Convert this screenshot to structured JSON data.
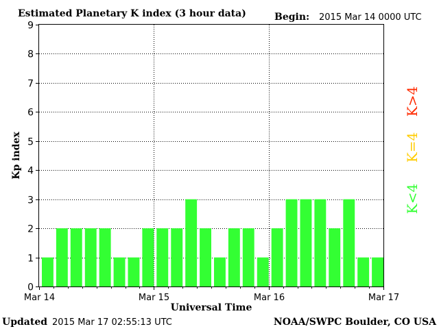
{
  "header": {
    "title": "Estimated Planetary K index (3 hour data)",
    "begin_label": "Begin:",
    "begin_value": "2015 Mar 14 0000 UTC"
  },
  "footer": {
    "updated_label": "Updated",
    "updated_value": "2015 Mar 17 02:55:13 UTC",
    "credit": "NOAA/SWPC Boulder, CO USA"
  },
  "legend": [
    {
      "text": "K>4",
      "color": "#ff2a00"
    },
    {
      "text": "K=4",
      "color": "#ffcc00"
    },
    {
      "text": "K<4",
      "color": "#33ff33"
    }
  ],
  "chart_data": {
    "type": "bar",
    "title": "Estimated Planetary K index (3 hour data)",
    "xlabel": "Universal Time",
    "ylabel": "Kp index",
    "ylim": [
      0,
      9
    ],
    "yticks": [
      "0",
      "1",
      "2",
      "3",
      "4",
      "5",
      "6",
      "7",
      "8",
      "9"
    ],
    "xticks": [
      "Mar 14",
      "Mar 15",
      "Mar 16",
      "Mar 17"
    ],
    "values": [
      1,
      2,
      2,
      2,
      2,
      1,
      1,
      2,
      2,
      2,
      3,
      2,
      1,
      2,
      2,
      1,
      2,
      3,
      3,
      3,
      2,
      3,
      1,
      1
    ],
    "bar_color": "#33ff33",
    "grid": "dotted vertical at day boundaries, dotted horizontal at each Kp level"
  }
}
